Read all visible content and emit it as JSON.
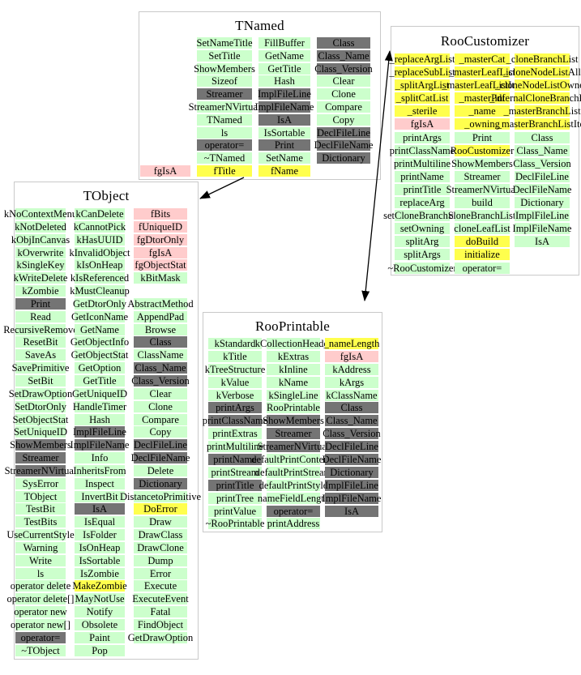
{
  "diagram": {
    "type": "class-members-inheritance-chart",
    "color_key": {
      "g": "#ccffcc",
      "s": "#747474",
      "y": "#ffff4d",
      "p": "#ffcccc",
      "e": "#ffffff"
    },
    "arrows": [
      {
        "from": "TNamed",
        "to": "TObject",
        "heads": [
          "end"
        ]
      },
      {
        "from": "RooCustomizer",
        "to": "RooPrintable",
        "heads": [
          "start",
          "end"
        ]
      }
    ],
    "classes": [
      {
        "name": "TNamed",
        "columns": [
          [
            null,
            null,
            null,
            null,
            null,
            null,
            null,
            null,
            null,
            null,
            [
              "fgIsA",
              "p"
            ]
          ],
          [
            [
              "SetNameTitle",
              "g"
            ],
            [
              "SetTitle",
              "g"
            ],
            [
              "ShowMembers",
              "g"
            ],
            [
              "Sizeof",
              "g"
            ],
            [
              "Streamer",
              "s"
            ],
            [
              "StreamerNVirtual",
              "g"
            ],
            [
              "TNamed",
              "g"
            ],
            [
              "ls",
              "g"
            ],
            [
              "operator=",
              "s"
            ],
            [
              "~TNamed",
              "g"
            ],
            [
              "fTitle",
              "y"
            ]
          ],
          [
            [
              "FillBuffer",
              "g"
            ],
            [
              "GetName",
              "g"
            ],
            [
              "GetTitle",
              "g"
            ],
            [
              "Hash",
              "g"
            ],
            [
              "ImplFileLine",
              "s"
            ],
            [
              "ImplFileName",
              "s"
            ],
            [
              "IsA",
              "s"
            ],
            [
              "IsSortable",
              "g"
            ],
            [
              "Print",
              "s"
            ],
            [
              "SetName",
              "g"
            ],
            [
              "fName",
              "y"
            ]
          ],
          [
            [
              "Class",
              "s"
            ],
            [
              "Class_Name",
              "s"
            ],
            [
              "Class_Version",
              "s"
            ],
            [
              "Clear",
              "g"
            ],
            [
              "Clone",
              "g"
            ],
            [
              "Compare",
              "g"
            ],
            [
              "Copy",
              "g"
            ],
            [
              "DeclFileLine",
              "s"
            ],
            [
              "DeclFileName",
              "s"
            ],
            [
              "Dictionary",
              "s"
            ],
            null
          ]
        ]
      },
      {
        "name": "RooCustomizer",
        "columns": [
          [
            [
              "_replaceArgList",
              "y"
            ],
            [
              "_replaceSubList",
              "y"
            ],
            [
              "_splitArgList",
              "y"
            ],
            [
              "_splitCatList",
              "y"
            ],
            [
              "_sterile",
              "y"
            ],
            [
              "fgIsA",
              "p"
            ],
            [
              "printArgs",
              "g"
            ],
            [
              "printClassName",
              "g"
            ],
            [
              "printMultiline",
              "g"
            ],
            [
              "printName",
              "g"
            ],
            [
              "printTitle",
              "g"
            ],
            [
              "replaceArg",
              "g"
            ],
            [
              "setCloneBranchSet",
              "g"
            ],
            [
              "setOwning",
              "g"
            ],
            [
              "splitArg",
              "g"
            ],
            [
              "splitArgs",
              "g"
            ],
            [
              "~RooCustomizer",
              "g"
            ]
          ],
          [
            [
              "_masterCat",
              "y"
            ],
            [
              "_masterLeafList",
              "y"
            ],
            [
              "_masterLeafListIter",
              "y"
            ],
            [
              "_masterPdf",
              "y"
            ],
            [
              "_name",
              "y"
            ],
            [
              "_owning",
              "y"
            ],
            [
              "Print",
              "g"
            ],
            [
              "RooCustomizer",
              "y"
            ],
            [
              "ShowMembers",
              "g"
            ],
            [
              "Streamer",
              "g"
            ],
            [
              "StreamerNVirtual",
              "g"
            ],
            [
              "build",
              "g"
            ],
            [
              "cloneBranchList",
              "g"
            ],
            [
              "cloneLeafList",
              "g"
            ],
            [
              "doBuild",
              "y"
            ],
            [
              "initialize",
              "y"
            ],
            [
              "operator=",
              "g"
            ]
          ],
          [
            [
              "_cloneBranchList",
              "y"
            ],
            [
              "_cloneNodeListAll",
              "y"
            ],
            [
              "_cloneNodeListOwned",
              "y"
            ],
            [
              "_internalCloneBranchList",
              "y"
            ],
            [
              "_masterBranchList",
              "y"
            ],
            [
              "_masterBranchListIter",
              "y"
            ],
            [
              "Class",
              "g"
            ],
            [
              "Class_Name",
              "g"
            ],
            [
              "Class_Version",
              "g"
            ],
            [
              "DeclFileLine",
              "g"
            ],
            [
              "DeclFileName",
              "g"
            ],
            [
              "Dictionary",
              "g"
            ],
            [
              "ImplFileLine",
              "g"
            ],
            [
              "ImplFileName",
              "g"
            ],
            [
              "IsA",
              "g"
            ],
            [
              "",
              "e"
            ],
            [
              "",
              "e"
            ]
          ]
        ]
      },
      {
        "name": "RooPrintable",
        "columns": [
          [
            [
              "kStandard",
              "g"
            ],
            [
              "kTitle",
              "g"
            ],
            [
              "kTreeStructure",
              "g"
            ],
            [
              "kValue",
              "g"
            ],
            [
              "kVerbose",
              "g"
            ],
            [
              "printArgs",
              "s"
            ],
            [
              "printClassName",
              "s"
            ],
            [
              "printExtras",
              "g"
            ],
            [
              "printMultiline",
              "g"
            ],
            [
              "printName",
              "s"
            ],
            [
              "printStream",
              "g"
            ],
            [
              "printTitle",
              "s"
            ],
            [
              "printTree",
              "g"
            ],
            [
              "printValue",
              "g"
            ],
            [
              "~RooPrintable",
              "g"
            ]
          ],
          [
            [
              "kCollectionHeader",
              "g"
            ],
            [
              "kExtras",
              "g"
            ],
            [
              "kInline",
              "g"
            ],
            [
              "kName",
              "g"
            ],
            [
              "kSingleLine",
              "g"
            ],
            [
              "RooPrintable",
              "g"
            ],
            [
              "ShowMembers",
              "s"
            ],
            [
              "Streamer",
              "s"
            ],
            [
              "StreamerNVirtual",
              "s"
            ],
            [
              "defaultPrintContents",
              "g"
            ],
            [
              "defaultPrintStream",
              "g"
            ],
            [
              "defaultPrintStyle",
              "g"
            ],
            [
              "nameFieldLength",
              "g"
            ],
            [
              "operator=",
              "s"
            ],
            [
              "printAddress",
              "g"
            ]
          ],
          [
            [
              "_nameLength",
              "y"
            ],
            [
              "fgIsA",
              "p"
            ],
            [
              "kAddress",
              "g"
            ],
            [
              "kArgs",
              "g"
            ],
            [
              "kClassName",
              "g"
            ],
            [
              "Class",
              "s"
            ],
            [
              "Class_Name",
              "s"
            ],
            [
              "Class_Version",
              "s"
            ],
            [
              "DeclFileLine",
              "s"
            ],
            [
              "DeclFileName",
              "s"
            ],
            [
              "Dictionary",
              "s"
            ],
            [
              "ImplFileLine",
              "s"
            ],
            [
              "ImplFileName",
              "s"
            ],
            [
              "IsA",
              "s"
            ],
            [
              "",
              "e"
            ]
          ]
        ]
      },
      {
        "name": "TObject",
        "columns": [
          [
            [
              "kNoContextMenu",
              "g"
            ],
            [
              "kNotDeleted",
              "g"
            ],
            [
              "kObjInCanvas",
              "g"
            ],
            [
              "kOverwrite",
              "g"
            ],
            [
              "kSingleKey",
              "g"
            ],
            [
              "kWriteDelete",
              "g"
            ],
            [
              "kZombie",
              "g"
            ],
            [
              "Print",
              "s"
            ],
            [
              "Read",
              "g"
            ],
            [
              "RecursiveRemove",
              "g"
            ],
            [
              "ResetBit",
              "g"
            ],
            [
              "SaveAs",
              "g"
            ],
            [
              "SavePrimitive",
              "g"
            ],
            [
              "SetBit",
              "g"
            ],
            [
              "SetDrawOption",
              "g"
            ],
            [
              "SetDtorOnly",
              "g"
            ],
            [
              "SetObjectStat",
              "g"
            ],
            [
              "SetUniqueID",
              "g"
            ],
            [
              "ShowMembers",
              "s"
            ],
            [
              "Streamer",
              "s"
            ],
            [
              "StreamerNVirtual",
              "s"
            ],
            [
              "SysError",
              "g"
            ],
            [
              "TObject",
              "g"
            ],
            [
              "TestBit",
              "g"
            ],
            [
              "TestBits",
              "g"
            ],
            [
              "UseCurrentStyle",
              "g"
            ],
            [
              "Warning",
              "g"
            ],
            [
              "Write",
              "g"
            ],
            [
              "ls",
              "g"
            ],
            [
              "operator delete",
              "g"
            ],
            [
              "operator delete[]",
              "g"
            ],
            [
              "operator new",
              "g"
            ],
            [
              "operator new[]",
              "g"
            ],
            [
              "operator=",
              "s"
            ],
            [
              "~TObject",
              "g"
            ]
          ],
          [
            [
              "kCanDelete",
              "g"
            ],
            [
              "kCannotPick",
              "g"
            ],
            [
              "kHasUUID",
              "g"
            ],
            [
              "kInvalidObject",
              "g"
            ],
            [
              "kIsOnHeap",
              "g"
            ],
            [
              "kIsReferenced",
              "g"
            ],
            [
              "kMustCleanup",
              "g"
            ],
            [
              "GetDtorOnly",
              "g"
            ],
            [
              "GetIconName",
              "g"
            ],
            [
              "GetName",
              "g"
            ],
            [
              "GetObjectInfo",
              "g"
            ],
            [
              "GetObjectStat",
              "g"
            ],
            [
              "GetOption",
              "g"
            ],
            [
              "GetTitle",
              "g"
            ],
            [
              "GetUniqueID",
              "g"
            ],
            [
              "HandleTimer",
              "g"
            ],
            [
              "Hash",
              "g"
            ],
            [
              "ImplFileLine",
              "s"
            ],
            [
              "ImplFileName",
              "s"
            ],
            [
              "Info",
              "g"
            ],
            [
              "InheritsFrom",
              "g"
            ],
            [
              "Inspect",
              "g"
            ],
            [
              "InvertBit",
              "g"
            ],
            [
              "IsA",
              "s"
            ],
            [
              "IsEqual",
              "g"
            ],
            [
              "IsFolder",
              "g"
            ],
            [
              "IsOnHeap",
              "g"
            ],
            [
              "IsSortable",
              "g"
            ],
            [
              "IsZombie",
              "g"
            ],
            [
              "MakeZombie",
              "y"
            ],
            [
              "MayNotUse",
              "g"
            ],
            [
              "Notify",
              "g"
            ],
            [
              "Obsolete",
              "g"
            ],
            [
              "Paint",
              "g"
            ],
            [
              "Pop",
              "g"
            ]
          ],
          [
            [
              "fBits",
              "p"
            ],
            [
              "fUniqueID",
              "p"
            ],
            [
              "fgDtorOnly",
              "p"
            ],
            [
              "fgIsA",
              "p"
            ],
            [
              "fgObjectStat",
              "p"
            ],
            [
              "kBitMask",
              "g"
            ],
            [
              "",
              "e"
            ],
            [
              "AbstractMethod",
              "g"
            ],
            [
              "AppendPad",
              "g"
            ],
            [
              "Browse",
              "g"
            ],
            [
              "Class",
              "s"
            ],
            [
              "ClassName",
              "g"
            ],
            [
              "Class_Name",
              "s"
            ],
            [
              "Class_Version",
              "s"
            ],
            [
              "Clear",
              "g"
            ],
            [
              "Clone",
              "g"
            ],
            [
              "Compare",
              "g"
            ],
            [
              "Copy",
              "g"
            ],
            [
              "DeclFileLine",
              "s"
            ],
            [
              "DeclFileName",
              "s"
            ],
            [
              "Delete",
              "g"
            ],
            [
              "Dictionary",
              "s"
            ],
            [
              "DistancetoPrimitive",
              "g"
            ],
            [
              "DoError",
              "y"
            ],
            [
              "Draw",
              "g"
            ],
            [
              "DrawClass",
              "g"
            ],
            [
              "DrawClone",
              "g"
            ],
            [
              "Dump",
              "g"
            ],
            [
              "Error",
              "g"
            ],
            [
              "Execute",
              "g"
            ],
            [
              "ExecuteEvent",
              "g"
            ],
            [
              "Fatal",
              "g"
            ],
            [
              "FindObject",
              "g"
            ],
            [
              "GetDrawOption",
              "g"
            ],
            [
              "",
              "e"
            ]
          ]
        ]
      }
    ]
  }
}
